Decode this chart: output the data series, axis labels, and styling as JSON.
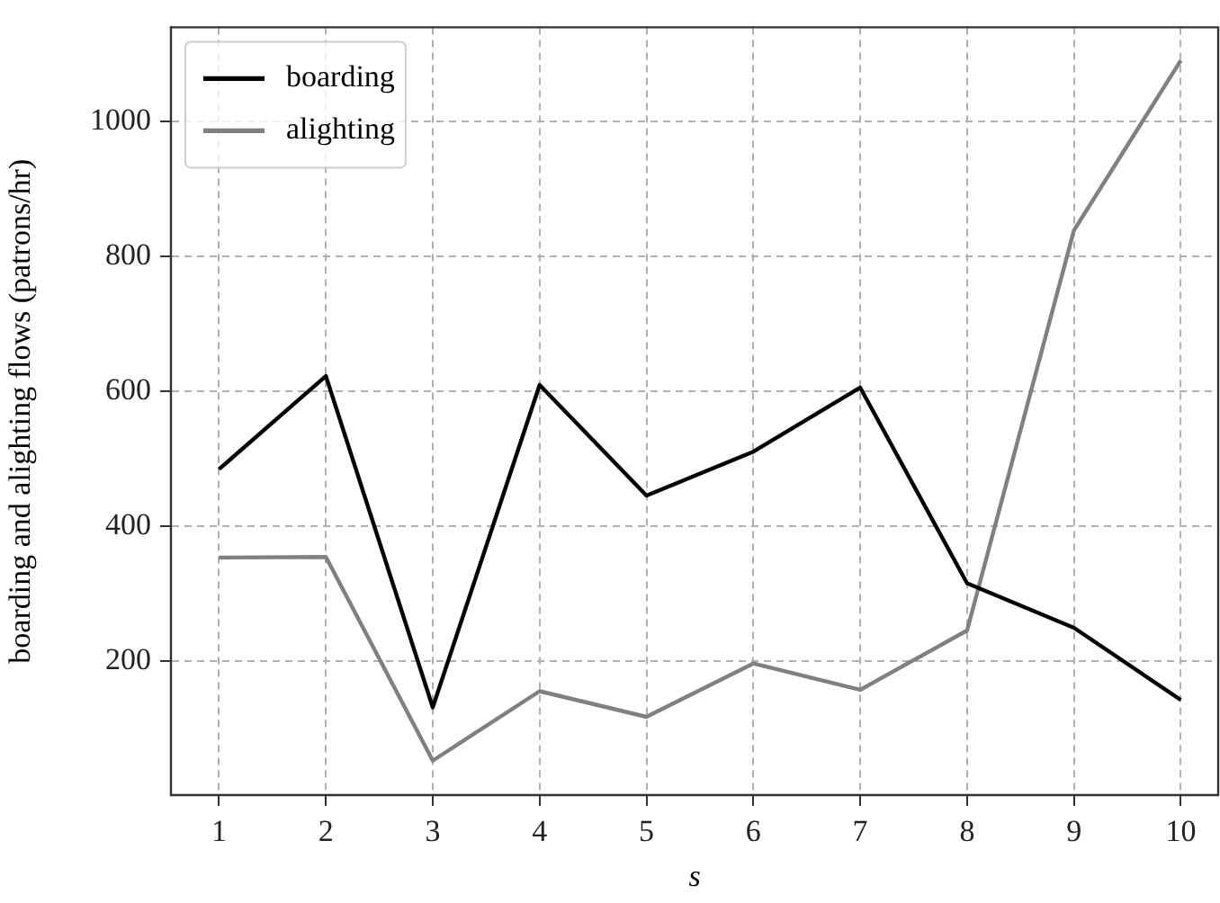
{
  "chart_data": {
    "type": "line",
    "xlabel": "s",
    "ylabel": "boarding and alighting flows (patrons/hr)",
    "x": [
      1,
      2,
      3,
      4,
      5,
      6,
      7,
      8,
      9,
      10
    ],
    "series": [
      {
        "name": "boarding",
        "color": "#000000",
        "values": [
          485,
          623,
          132,
          610,
          446,
          511,
          606,
          316,
          250,
          143
        ]
      },
      {
        "name": "alighting",
        "color": "#808080",
        "values": [
          354,
          355,
          53,
          156,
          118,
          197,
          158,
          246,
          839,
          1091
        ]
      }
    ],
    "xlim": [
      0.55,
      10.35
    ],
    "xticks": [
      1,
      2,
      3,
      4,
      5,
      6,
      7,
      8,
      9,
      10
    ],
    "ylim": [
      2,
      1140
    ],
    "yticks": [
      200,
      400,
      600,
      800,
      1000
    ],
    "grid": true,
    "legend": "top left",
    "marker": "none",
    "line_style": "solid"
  }
}
